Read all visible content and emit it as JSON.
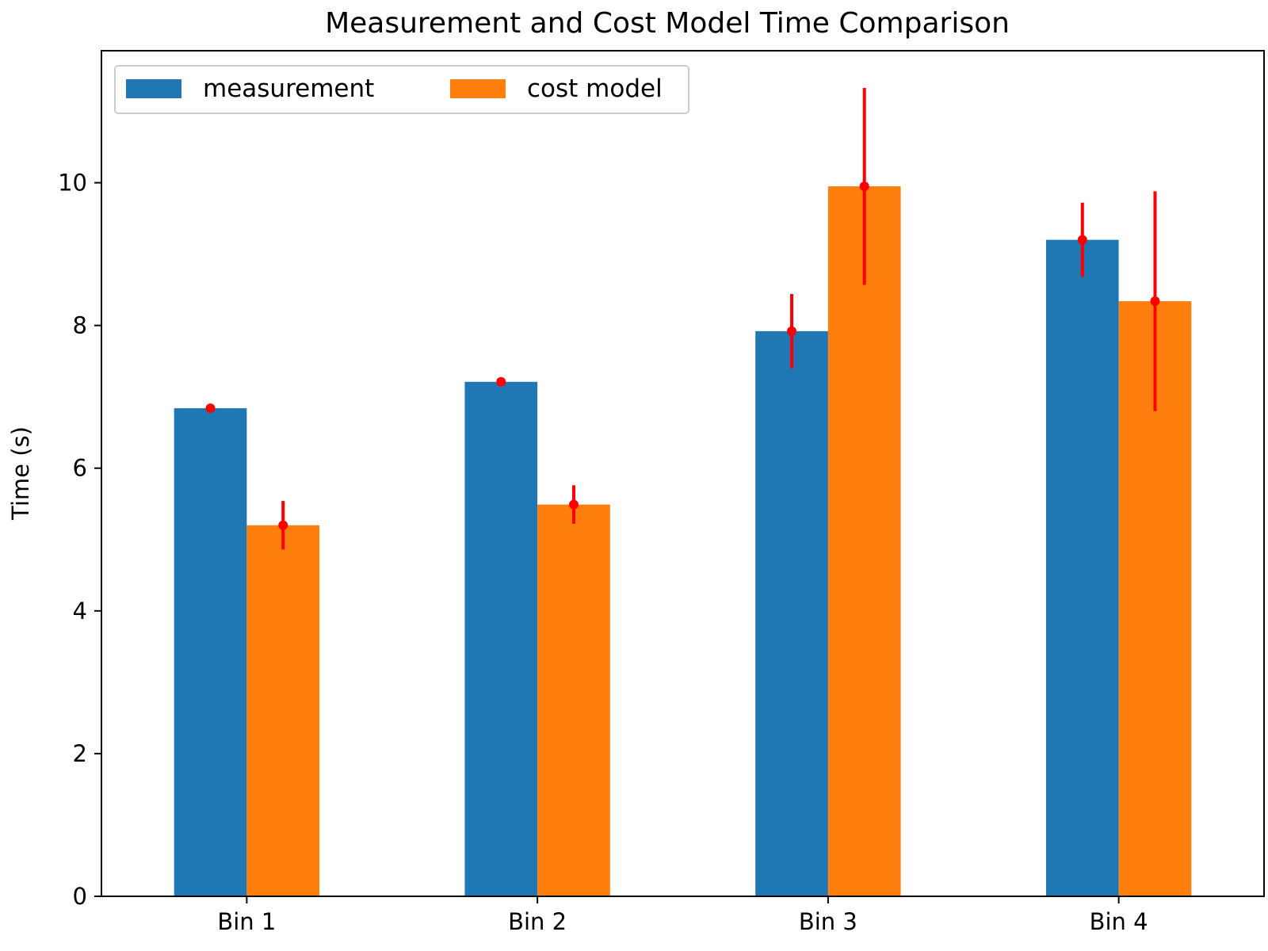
{
  "chart_data": {
    "type": "bar",
    "title": "Measurement and Cost Model Time Comparison",
    "xlabel": "",
    "ylabel": "Time (s)",
    "categories": [
      "Bin 1",
      "Bin 2",
      "Bin 3",
      "Bin 4"
    ],
    "ylim": [
      0,
      11.85
    ],
    "yticks": [
      0,
      2,
      4,
      6,
      8,
      10
    ],
    "grid": false,
    "legend_position": "top-left",
    "series": [
      {
        "name": "measurement",
        "color": "#1f77b4",
        "values": [
          6.84,
          7.21,
          7.92,
          9.2
        ],
        "error": [
          0.02,
          0.02,
          0.52,
          0.52
        ]
      },
      {
        "name": "cost model",
        "color": "#ff7f0e",
        "values": [
          5.2,
          5.49,
          9.95,
          8.34
        ],
        "error": [
          0.34,
          0.27,
          1.38,
          1.54
        ]
      }
    ],
    "errorbar_color": "#ff0000"
  }
}
